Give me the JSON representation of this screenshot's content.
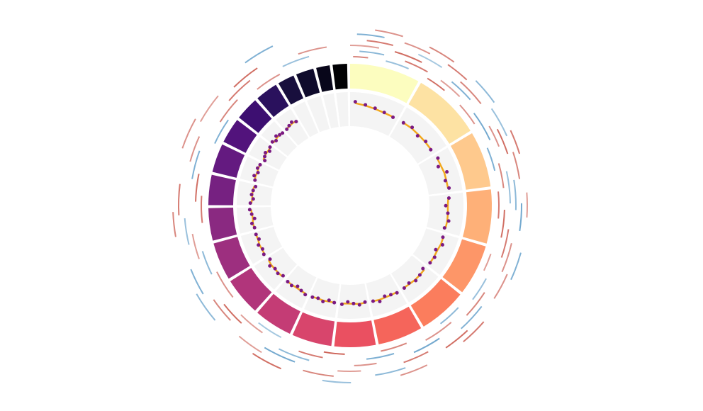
{
  "chart_data": {
    "type": "circos",
    "sizes": [
      249,
      243,
      198,
      191,
      181,
      171,
      159,
      146,
      141,
      136,
      135,
      134,
      115,
      107,
      102,
      90,
      83,
      80,
      59,
      63,
      48,
      51
    ],
    "colors": [
      "#fcfdbf",
      "#fde2a3",
      "#fec98d",
      "#feb078",
      "#fd9668",
      "#fb7d5d",
      "#f5655b",
      "#ea5061",
      "#d8456c",
      "#c43c75",
      "#b1357b",
      "#9d2f7f",
      "#8a2981",
      "#762181",
      "#641a80",
      "#52137c",
      "#3d0f71",
      "#2a115d",
      "#180f3d",
      "#0f0b2c",
      "#08061a",
      "#000004"
    ],
    "ylim": [
      0,
      1
    ],
    "point_color": "#7b1a82",
    "line_color": "#f2a81d",
    "points": [
      [
        0.72,
        0.66,
        0.62,
        0.58,
        0.55
      ],
      [
        0.56,
        0.6,
        0.52,
        0.58,
        0.55
      ],
      [
        0.6,
        0.5,
        0.68,
        0.56,
        0.62
      ],
      [
        0.58,
        0.48,
        0.55,
        0.6,
        0.52
      ],
      [
        0.55,
        0.62,
        0.5,
        0.58,
        0.56
      ],
      [
        0.5,
        0.56,
        0.6,
        0.53,
        0.57
      ],
      [
        0.58,
        0.55,
        0.52,
        0.62,
        0.56
      ],
      [
        0.54,
        0.6,
        0.55,
        0.5,
        0.58
      ],
      [
        0.56,
        0.52,
        0.6,
        0.55,
        0.58
      ],
      [
        0.6,
        0.55,
        0.5,
        0.58,
        0.56
      ],
      [
        0.52,
        0.58,
        0.55,
        0.62,
        0.5
      ],
      [
        0.58,
        0.54,
        0.6,
        0.52,
        0.56
      ],
      [
        0.55,
        0.6,
        0.5,
        0.57,
        0.62
      ],
      [
        0.6,
        0.52,
        0.58,
        0.55,
        0.5
      ],
      [
        0.56,
        0.62,
        0.54,
        0.6,
        0.57
      ],
      [
        0.5,
        0.56,
        0.6,
        0.52,
        0.58
      ],
      [
        0.62,
        0.56,
        0.65,
        0.6,
        0.58
      ],
      [
        0.58,
        0.62,
        0.66,
        0.6
      ],
      [],
      [],
      [],
      []
    ],
    "line": [
      [
        0.68,
        0.64,
        0.6,
        0.57,
        0.56
      ],
      [
        0.56,
        0.57,
        0.56,
        0.56,
        0.56
      ],
      [
        0.58,
        0.58,
        0.6,
        0.59,
        0.59
      ],
      [
        0.56,
        0.54,
        0.55,
        0.56,
        0.55
      ],
      [
        0.56,
        0.57,
        0.55,
        0.56,
        0.56
      ],
      [
        0.55,
        0.56,
        0.57,
        0.56,
        0.56
      ],
      [
        0.56,
        0.56,
        0.56,
        0.57,
        0.56
      ],
      [
        0.56,
        0.57,
        0.56,
        0.55,
        0.56
      ],
      [
        0.56,
        0.56,
        0.57,
        0.56,
        0.57
      ],
      [
        0.57,
        0.56,
        0.55,
        0.56,
        0.56
      ],
      [
        0.55,
        0.56,
        0.56,
        0.57,
        0.55
      ],
      [
        0.56,
        0.56,
        0.57,
        0.55,
        0.56
      ],
      [
        0.56,
        0.57,
        0.55,
        0.56,
        0.58
      ],
      [
        0.57,
        0.55,
        0.56,
        0.56,
        0.54
      ],
      [
        0.56,
        0.58,
        0.56,
        0.58,
        0.57
      ],
      [
        0.55,
        0.56,
        0.57,
        0.56,
        0.57
      ],
      [
        0.58,
        0.58,
        0.6,
        0.59,
        0.59
      ],
      [
        0.59,
        0.6,
        0.62,
        0.61
      ],
      [],
      [],
      [],
      []
    ],
    "pos_color": "#c0392b",
    "neg_color": "#2f7fb8",
    "tracks": [
      {
        "arcs": [
          [
            10,
            60,
            0.6
          ],
          [
            120,
            200,
            -0.4
          ],
          [
            260,
            330,
            0.8
          ],
          [
            400,
            480,
            0.5
          ],
          [
            560,
            640,
            -0.6
          ],
          [
            700,
            790,
            0.7
          ],
          [
            900,
            960,
            0.4
          ],
          [
            1100,
            1180,
            -0.5
          ],
          [
            1300,
            1390,
            0.6
          ],
          [
            1500,
            1560,
            0.9
          ],
          [
            1700,
            1790,
            -0.3
          ],
          [
            1900,
            1990,
            0.5
          ],
          [
            2150,
            2230,
            0.7
          ],
          [
            2400,
            2480,
            -0.6
          ],
          [
            2600,
            2680,
            0.5
          ]
        ]
      },
      {
        "arcs": [
          [
            30,
            110,
            -0.5
          ],
          [
            180,
            250,
            0.7
          ],
          [
            300,
            380,
            0.4
          ],
          [
            450,
            540,
            -0.7
          ],
          [
            620,
            690,
            0.6
          ],
          [
            760,
            850,
            0.8
          ],
          [
            980,
            1060,
            -0.4
          ],
          [
            1150,
            1240,
            0.5
          ],
          [
            1350,
            1430,
            -0.6
          ],
          [
            1560,
            1640,
            0.7
          ],
          [
            1760,
            1840,
            0.4
          ],
          [
            1990,
            2070,
            -0.5
          ],
          [
            2210,
            2300,
            0.8
          ],
          [
            2460,
            2540,
            0.6
          ],
          [
            2700,
            2780,
            -0.4
          ]
        ]
      },
      {
        "arcs": [
          [
            0,
            90,
            0.4
          ],
          [
            140,
            230,
            0.8
          ],
          [
            330,
            410,
            -0.6
          ],
          [
            500,
            570,
            0.5
          ],
          [
            650,
            740,
            -0.4
          ],
          [
            820,
            900,
            0.7
          ],
          [
            1020,
            1100,
            0.6
          ],
          [
            1210,
            1290,
            -0.7
          ],
          [
            1400,
            1470,
            0.5
          ],
          [
            1600,
            1690,
            -0.5
          ],
          [
            1820,
            1900,
            0.8
          ],
          [
            2050,
            2120,
            0.4
          ],
          [
            2280,
            2360,
            -0.6
          ],
          [
            2520,
            2600,
            0.7
          ],
          [
            2750,
            2830,
            0.5
          ]
        ]
      },
      {
        "arcs": [
          [
            50,
            130,
            0.7
          ],
          [
            210,
            280,
            -0.3
          ],
          [
            350,
            440,
            0.6
          ],
          [
            520,
            600,
            0.8
          ],
          [
            680,
            760,
            -0.5
          ],
          [
            860,
            940,
            0.5
          ],
          [
            1060,
            1140,
            -0.6
          ],
          [
            1250,
            1330,
            0.7
          ],
          [
            1450,
            1520,
            0.4
          ],
          [
            1640,
            1730,
            -0.7
          ],
          [
            1850,
            1930,
            0.6
          ],
          [
            2090,
            2170,
            -0.4
          ],
          [
            2320,
            2400,
            0.5
          ],
          [
            2560,
            2640,
            0.8
          ]
        ]
      },
      {
        "arcs": [
          [
            20,
            100,
            -0.6
          ],
          [
            160,
            240,
            0.5
          ],
          [
            290,
            360,
            0.7
          ],
          [
            470,
            550,
            -0.4
          ],
          [
            600,
            680,
            0.6
          ],
          [
            740,
            820,
            -0.7
          ],
          [
            940,
            1020,
            0.5
          ],
          [
            1130,
            1210,
            0.8
          ],
          [
            1330,
            1410,
            -0.5
          ],
          [
            1530,
            1610,
            0.6
          ],
          [
            1730,
            1810,
            0.4
          ],
          [
            1950,
            2030,
            -0.6
          ],
          [
            2180,
            2260,
            0.7
          ],
          [
            2430,
            2510,
            0.4
          ]
        ]
      },
      {
        "arcs": [
          [
            70,
            150,
            0.5
          ],
          [
            230,
            300,
            0.6
          ],
          [
            380,
            460,
            -0.5
          ],
          [
            540,
            610,
            0.7
          ],
          [
            710,
            780,
            0.4
          ],
          [
            880,
            950,
            -0.6
          ],
          [
            1080,
            1160,
            0.7
          ],
          [
            1270,
            1350,
            0.5
          ],
          [
            1480,
            1550,
            -0.4
          ],
          [
            1670,
            1750,
            0.8
          ],
          [
            1880,
            1960,
            -0.5
          ],
          [
            2120,
            2190,
            0.6
          ],
          [
            2350,
            2430,
            0.5
          ],
          [
            2620,
            2700,
            -0.6
          ]
        ]
      }
    ]
  }
}
